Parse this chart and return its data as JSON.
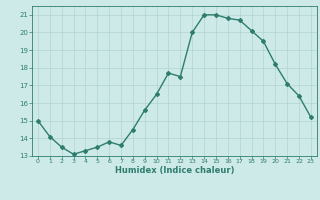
{
  "x": [
    0,
    1,
    2,
    3,
    4,
    5,
    6,
    7,
    8,
    9,
    10,
    11,
    12,
    13,
    14,
    15,
    16,
    17,
    18,
    19,
    20,
    21,
    22,
    23
  ],
  "y": [
    15.0,
    14.1,
    13.5,
    13.1,
    13.3,
    13.5,
    13.8,
    13.6,
    14.5,
    15.6,
    16.5,
    17.7,
    17.5,
    20.0,
    21.0,
    21.0,
    20.8,
    20.7,
    20.1,
    19.5,
    18.2,
    17.1,
    16.4,
    15.2
  ],
  "xlabel": "Humidex (Indice chaleur)",
  "line_color": "#2e7d6e",
  "bg_color": "#ceeae8",
  "grid_color": "#b0d4d0",
  "ylim": [
    13,
    21.5
  ],
  "xlim": [
    -0.5,
    23.5
  ],
  "yticks": [
    13,
    14,
    15,
    16,
    17,
    18,
    19,
    20,
    21
  ],
  "xticks": [
    0,
    1,
    2,
    3,
    4,
    5,
    6,
    7,
    8,
    9,
    10,
    11,
    12,
    13,
    14,
    15,
    16,
    17,
    18,
    19,
    20,
    21,
    22,
    23
  ],
  "marker": "D",
  "markersize": 2.0,
  "linewidth": 1.0
}
